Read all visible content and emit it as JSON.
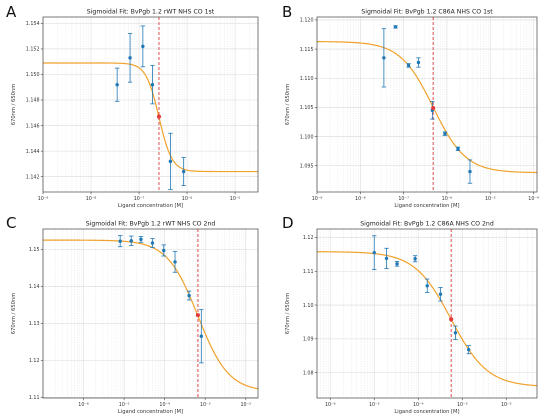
{
  "chart_data": [
    {
      "panel": "A",
      "type": "scatter",
      "title": "Sigmoidal Fit: BvPgb 1.2 rWT NHS CO 1st",
      "xlabel": "Ligand concentration [M]",
      "ylabel": "670nm / 650nm",
      "xscale": "log",
      "xlim": [
        1e-09,
        3e-05
      ],
      "ylim": [
        1.1408,
        1.1545
      ],
      "xticks": [
        1e-09,
        1e-08,
        1e-07,
        1e-06,
        1e-05
      ],
      "xticklabels": [
        "10⁻⁹",
        "10⁻⁸",
        "10⁻⁷",
        "10⁻⁶",
        "10⁻⁵"
      ],
      "yticks": [
        1.142,
        1.144,
        1.146,
        1.148,
        1.15,
        1.152,
        1.154
      ],
      "yticklabels": [
        "1.142",
        "1.144",
        "1.146",
        "1.148",
        "1.150",
        "1.152",
        "1.154"
      ],
      "grid": true,
      "points": [
        {
          "x": 3.5e-08,
          "y": 1.1492,
          "err": 0.0013
        },
        {
          "x": 6.5e-08,
          "y": 1.1513,
          "err": 0.0019
        },
        {
          "x": 1.2e-07,
          "y": 1.1522,
          "err": 0.0016
        },
        {
          "x": 1.9e-07,
          "y": 1.1492,
          "err": 0.0015
        },
        {
          "x": 4.5e-07,
          "y": 1.1432,
          "err": 0.0022
        },
        {
          "x": 8.5e-07,
          "y": 1.1424,
          "err": 0.0011
        }
      ],
      "fit": {
        "top": 1.1509,
        "bottom": 1.1424,
        "ec50": 2.6e-07,
        "hill": 3.2
      },
      "ec50_marker": {
        "x": 2.6e-07,
        "y": 1.1467
      }
    },
    {
      "panel": "B",
      "type": "scatter",
      "title": "Sigmoidal Fit: BvPgb 1.2 C86A NHS CO 1st",
      "xlabel": "Ligand concentration [M]",
      "ylabel": "670nm / 650nm",
      "xscale": "log",
      "xlim": [
        1e-09,
        0.00012
      ],
      "ylim": [
        1.0905,
        1.1205
      ],
      "xticks": [
        1e-09,
        1e-08,
        1e-07,
        1e-06,
        1e-05,
        0.0001
      ],
      "xticklabels": [
        "10⁻⁹",
        "10⁻⁸",
        "10⁻⁷",
        "10⁻⁶",
        "10⁻⁵",
        "10⁻⁴"
      ],
      "yticks": [
        1.095,
        1.1,
        1.105,
        1.11,
        1.115,
        1.12
      ],
      "yticklabels": [
        "1.095",
        "1.100",
        "1.105",
        "1.110",
        "1.115",
        "1.120"
      ],
      "grid": true,
      "points": [
        {
          "x": 3.5e-08,
          "y": 1.1135,
          "err": 0.005
        },
        {
          "x": 6.5e-08,
          "y": 1.1188,
          "err": 0.0002
        },
        {
          "x": 1.3e-07,
          "y": 1.1122,
          "err": 0.0003
        },
        {
          "x": 2.2e-07,
          "y": 1.1127,
          "err": 0.0008
        },
        {
          "x": 4.6e-07,
          "y": 1.1045,
          "err": 0.0015
        },
        {
          "x": 9e-07,
          "y": 1.1005,
          "err": 0.0003
        },
        {
          "x": 1.8e-06,
          "y": 1.0979,
          "err": 0.0003
        },
        {
          "x": 3.4e-06,
          "y": 1.094,
          "err": 0.002
        }
      ],
      "fit": {
        "top": 1.1163,
        "bottom": 1.0938,
        "ec50": 4.8e-07,
        "hill": 1.15
      },
      "ec50_marker": {
        "x": 4.8e-07,
        "y": 1.1049
      }
    },
    {
      "panel": "C",
      "type": "scatter",
      "title": "Sigmoidal Fit: BvPgb 1.2 rWT NHS CO 2nd",
      "xlabel": "Ligand concentration [M]",
      "ylabel": "670nm / 650nm",
      "xscale": "log",
      "xlim": [
        1e-07,
        0.02
      ],
      "ylim": [
        1.1098,
        1.1555
      ],
      "xticks": [
        1e-06,
        1e-05,
        0.0001,
        0.001,
        0.01
      ],
      "xticklabels": [
        "10⁻⁶",
        "10⁻⁵",
        "10⁻⁴",
        "10⁻³",
        "10⁻²"
      ],
      "yticks": [
        1.11,
        1.12,
        1.13,
        1.14,
        1.15
      ],
      "yticklabels": [
        "1.11",
        "1.12",
        "1.13",
        "1.14",
        "1.15"
      ],
      "grid": true,
      "points": [
        {
          "x": 8e-06,
          "y": 1.1522,
          "err": 0.0015
        },
        {
          "x": 1.5e-05,
          "y": 1.1523,
          "err": 0.0013
        },
        {
          "x": 2.6e-05,
          "y": 1.1527,
          "err": 0.0008
        },
        {
          "x": 5e-05,
          "y": 1.1517,
          "err": 0.0012
        },
        {
          "x": 9.5e-05,
          "y": 1.1497,
          "err": 0.0015
        },
        {
          "x": 0.00018,
          "y": 1.1466,
          "err": 0.0028
        },
        {
          "x": 0.0004,
          "y": 1.1375,
          "err": 0.0012
        },
        {
          "x": 0.0008,
          "y": 1.1265,
          "err": 0.0072
        }
      ],
      "fit": {
        "top": 1.1525,
        "bottom": 1.1115,
        "ec50": 0.00066,
        "hill": 1.15
      },
      "ec50_marker": {
        "x": 0.00066,
        "y": 1.1322
      }
    },
    {
      "panel": "D",
      "type": "scatter",
      "title": "Sigmoidal Fit: BvPgb 1.2 C86A NHS CO 2nd",
      "xlabel": "Ligand concentration [M]",
      "ylabel": "670nm / 650nm",
      "xscale": "log",
      "xlim": [
        5e-07,
        0.05
      ],
      "ylim": [
        1.0725,
        1.1225
      ],
      "xticks": [
        1e-06,
        1e-05,
        0.0001,
        0.001,
        0.01
      ],
      "xticklabels": [
        "10⁻⁶",
        "10⁻⁵",
        "10⁻⁴",
        "10⁻³",
        "10⁻²"
      ],
      "yticks": [
        1.08,
        1.09,
        1.1,
        1.11,
        1.12
      ],
      "yticklabels": [
        "1.08",
        "1.09",
        "1.10",
        "1.11",
        "1.12"
      ],
      "grid": true,
      "points": [
        {
          "x": 1e-05,
          "y": 1.1155,
          "err": 0.005
        },
        {
          "x": 1.9e-05,
          "y": 1.1138,
          "err": 0.003
        },
        {
          "x": 3.3e-05,
          "y": 1.1122,
          "err": 0.0007
        },
        {
          "x": 8.5e-05,
          "y": 1.1137,
          "err": 0.0009
        },
        {
          "x": 0.00016,
          "y": 1.1057,
          "err": 0.002
        },
        {
          "x": 0.00032,
          "y": 1.1032,
          "err": 0.002
        },
        {
          "x": 0.0007,
          "y": 1.0918,
          "err": 0.002
        },
        {
          "x": 0.0014,
          "y": 1.0868,
          "err": 0.0012
        }
      ],
      "fit": {
        "top": 1.1158,
        "bottom": 1.0758,
        "ec50": 0.00056,
        "hill": 1.05
      },
      "ec50_marker": {
        "x": 0.00056,
        "y": 1.0958
      }
    }
  ],
  "colors": {
    "fit": "#f0a22c",
    "points": "#1f77b4",
    "ec50_point": "#e03a3a",
    "ec50_line": "#e03a3a",
    "grid": "#d9d9d9",
    "axis": "#444444"
  }
}
